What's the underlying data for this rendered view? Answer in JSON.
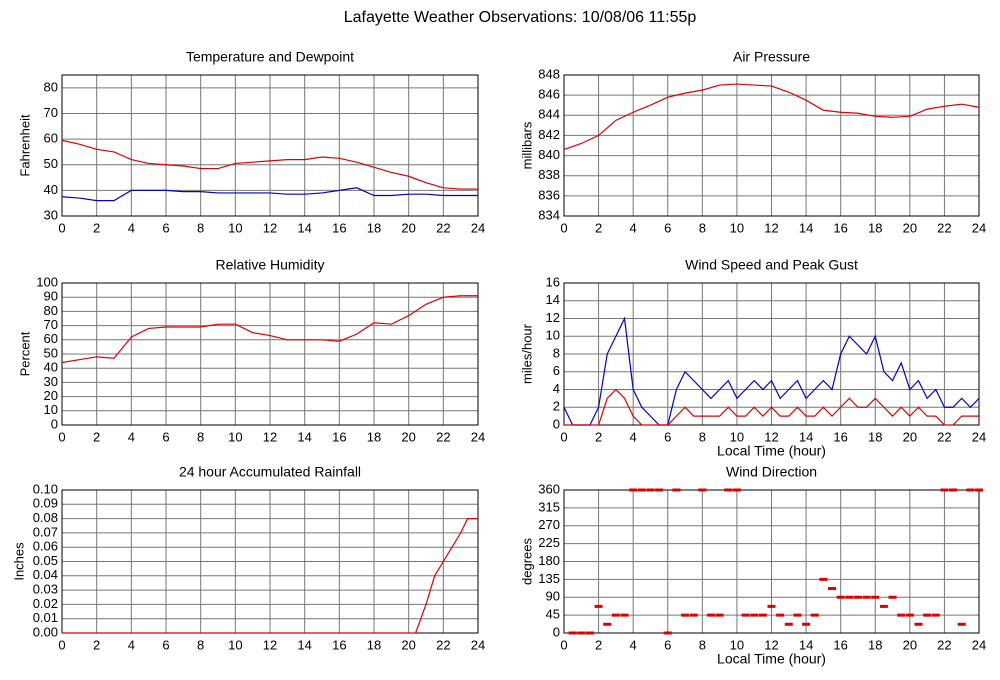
{
  "title": "Lafayette Weather Observations: 10/08/06 11:55p",
  "chart_data": [
    {
      "type": "line",
      "title": "Temperature and Dewpoint",
      "ylabel": "Fahrenheit",
      "x": [
        0,
        1,
        2,
        3,
        4,
        5,
        6,
        7,
        8,
        9,
        10,
        11,
        12,
        13,
        14,
        15,
        16,
        17,
        18,
        19,
        20,
        21,
        22,
        23,
        24
      ],
      "series": [
        {
          "color": "#dd0000",
          "values": [
            59.5,
            58,
            56,
            55,
            52,
            50.5,
            50,
            49.5,
            48.5,
            48.5,
            50.5,
            51,
            51.5,
            52,
            52,
            53,
            52.5,
            51,
            49,
            47,
            45.5,
            43,
            41,
            40.5,
            40.5
          ]
        },
        {
          "color": "#0000cc",
          "values": [
            37.5,
            37,
            36,
            36,
            40,
            40,
            40,
            39.5,
            39.5,
            39,
            39,
            39,
            39,
            38.5,
            38.5,
            39,
            40,
            41,
            38,
            38,
            38.5,
            38.5,
            38,
            38,
            38
          ]
        }
      ],
      "xlim": [
        0,
        24
      ],
      "xticks": [
        0,
        2,
        4,
        6,
        8,
        10,
        12,
        14,
        16,
        18,
        20,
        22,
        24
      ],
      "ylim": [
        30,
        85
      ],
      "yticks": [
        30,
        40,
        50,
        60,
        70,
        80
      ],
      "grid": true
    },
    {
      "type": "line",
      "title": "Air Pressure",
      "ylabel": "millibars",
      "x": [
        0,
        1,
        2,
        3,
        4,
        5,
        6,
        7,
        8,
        9,
        10,
        11,
        12,
        13,
        14,
        15,
        16,
        17,
        18,
        19,
        20,
        21,
        22,
        23,
        24
      ],
      "series": [
        {
          "color": "#dd0000",
          "values": [
            840.6,
            841.2,
            842,
            843.5,
            844.3,
            845,
            845.8,
            846.2,
            846.5,
            847,
            847.1,
            847,
            846.9,
            846.3,
            845.5,
            844.5,
            844.3,
            844.2,
            843.9,
            843.8,
            843.9,
            844.6,
            844.9,
            845.1,
            844.8
          ]
        }
      ],
      "xlim": [
        0,
        24
      ],
      "xticks": [
        0,
        2,
        4,
        6,
        8,
        10,
        12,
        14,
        16,
        18,
        20,
        22,
        24
      ],
      "ylim": [
        834,
        848
      ],
      "yticks": [
        834,
        836,
        838,
        840,
        842,
        844,
        846,
        848
      ],
      "grid": true
    },
    {
      "type": "line",
      "title": "Relative Humidity",
      "ylabel": "Percent",
      "x": [
        0,
        1,
        2,
        3,
        4,
        5,
        6,
        7,
        8,
        9,
        10,
        11,
        12,
        13,
        14,
        15,
        16,
        17,
        18,
        19,
        20,
        21,
        22,
        23,
        24
      ],
      "series": [
        {
          "color": "#dd0000",
          "values": [
            44,
            46,
            48,
            47,
            62,
            68,
            69,
            69,
            69,
            71,
            71,
            65,
            63,
            60,
            60,
            60,
            59,
            64,
            72,
            71,
            77,
            85,
            90,
            91,
            91
          ]
        }
      ],
      "xlim": [
        0,
        24
      ],
      "xticks": [
        0,
        2,
        4,
        6,
        8,
        10,
        12,
        14,
        16,
        18,
        20,
        22,
        24
      ],
      "ylim": [
        0,
        100
      ],
      "yticks": [
        0,
        10,
        20,
        30,
        40,
        50,
        60,
        70,
        80,
        90,
        100
      ],
      "grid": true
    },
    {
      "type": "line",
      "title": "Wind Speed and Peak Gust",
      "ylabel": "miles/hour",
      "xlabel": "Local Time (hour)",
      "x": [
        0,
        0.5,
        1,
        1.5,
        2,
        2.5,
        3,
        3.5,
        4,
        4.5,
        5,
        5.5,
        6,
        6.5,
        7,
        7.5,
        8,
        8.5,
        9,
        9.5,
        10,
        10.5,
        11,
        11.5,
        12,
        12.5,
        13,
        13.5,
        14,
        14.5,
        15,
        15.5,
        16,
        16.5,
        17,
        17.5,
        18,
        18.5,
        19,
        19.5,
        20,
        20.5,
        21,
        21.5,
        22,
        22.5,
        23,
        23.5,
        24
      ],
      "series": [
        {
          "color": "#0000cc",
          "values": [
            2,
            0,
            0,
            0,
            2,
            8,
            10,
            12,
            4,
            2,
            1,
            0,
            0,
            4,
            6,
            5,
            4,
            3,
            4,
            5,
            3,
            4,
            5,
            4,
            5,
            3,
            4,
            5,
            3,
            4,
            5,
            4,
            8,
            10,
            9,
            8,
            10,
            6,
            5,
            7,
            4,
            5,
            3,
            4,
            2,
            2,
            3,
            2,
            3
          ]
        },
        {
          "color": "#dd0000",
          "values": [
            0,
            0,
            0,
            0,
            0,
            3,
            4,
            3,
            1,
            0,
            0,
            0,
            0,
            1,
            2,
            1,
            1,
            1,
            1,
            2,
            1,
            1,
            2,
            1,
            2,
            1,
            1,
            2,
            1,
            1,
            2,
            1,
            2,
            3,
            2,
            2,
            3,
            2,
            1,
            2,
            1,
            2,
            1,
            1,
            0,
            0,
            1,
            1,
            1
          ]
        }
      ],
      "xlim": [
        0,
        24
      ],
      "xticks": [
        0,
        2,
        4,
        6,
        8,
        10,
        12,
        14,
        16,
        18,
        20,
        22,
        24
      ],
      "ylim": [
        0,
        16
      ],
      "yticks": [
        0,
        2,
        4,
        6,
        8,
        10,
        12,
        14,
        16
      ],
      "grid": true
    },
    {
      "type": "line",
      "title": "24 hour Accumulated Rainfall",
      "ylabel": "Inches",
      "x": [
        0,
        20.4,
        21,
        21.5,
        22,
        22.5,
        23,
        23.4,
        24
      ],
      "series": [
        {
          "color": "#dd0000",
          "values": [
            0,
            0,
            0.02,
            0.04,
            0.05,
            0.06,
            0.07,
            0.08,
            0.08
          ]
        }
      ],
      "xlim": [
        0,
        24
      ],
      "xticks": [
        0,
        2,
        4,
        6,
        8,
        10,
        12,
        14,
        16,
        18,
        20,
        22,
        24
      ],
      "ylim": [
        0,
        0.1
      ],
      "yticks": [
        {
          "value": 0,
          "label": "0.00"
        },
        {
          "value": 0.01,
          "label": "0.01"
        },
        {
          "value": 0.02,
          "label": "0.02"
        },
        {
          "value": 0.03,
          "label": "0.03"
        },
        {
          "value": 0.04,
          "label": "0.04"
        },
        {
          "value": 0.05,
          "label": "0.05"
        },
        {
          "value": 0.06,
          "label": "0.06"
        },
        {
          "value": 0.07,
          "label": "0.07"
        },
        {
          "value": 0.08,
          "label": "0.08"
        },
        {
          "value": 0.09,
          "label": "0.09"
        },
        {
          "value": 0.1,
          "label": "0.10"
        }
      ],
      "grid": true
    },
    {
      "type": "scatter",
      "title": "Wind Direction",
      "ylabel": "degrees",
      "xlabel": "Local Time (hour)",
      "x": [
        0.5,
        1,
        1.5,
        2,
        2.5,
        3,
        3.5,
        4,
        4.5,
        5,
        5.5,
        6,
        6.5,
        7,
        7.5,
        8,
        8.5,
        9,
        9.5,
        10,
        10.5,
        11,
        11.5,
        12,
        12.5,
        13,
        13.5,
        14,
        14.5,
        15,
        15.5,
        16,
        16.5,
        17,
        17.5,
        18,
        18.5,
        19,
        19.5,
        20,
        20.5,
        21,
        21.5,
        22,
        22.5,
        23,
        23.5,
        24
      ],
      "series": [
        {
          "color": "#dd0000",
          "values": [
            0,
            0,
            0,
            67,
            22,
            45,
            45,
            360,
            360,
            360,
            360,
            0,
            360,
            45,
            45,
            360,
            45,
            45,
            360,
            360,
            45,
            45,
            45,
            67,
            45,
            22,
            45,
            22,
            45,
            135,
            112,
            90,
            90,
            90,
            90,
            90,
            67,
            90,
            45,
            45,
            22,
            45,
            45,
            360,
            360,
            22,
            360,
            360
          ]
        }
      ],
      "xlim": [
        0,
        24
      ],
      "xticks": [
        0,
        2,
        4,
        6,
        8,
        10,
        12,
        14,
        16,
        18,
        20,
        22,
        24
      ],
      "ylim": [
        0,
        360
      ],
      "yticks": [
        0,
        45,
        90,
        135,
        180,
        225,
        270,
        315,
        360
      ],
      "grid": true
    }
  ]
}
